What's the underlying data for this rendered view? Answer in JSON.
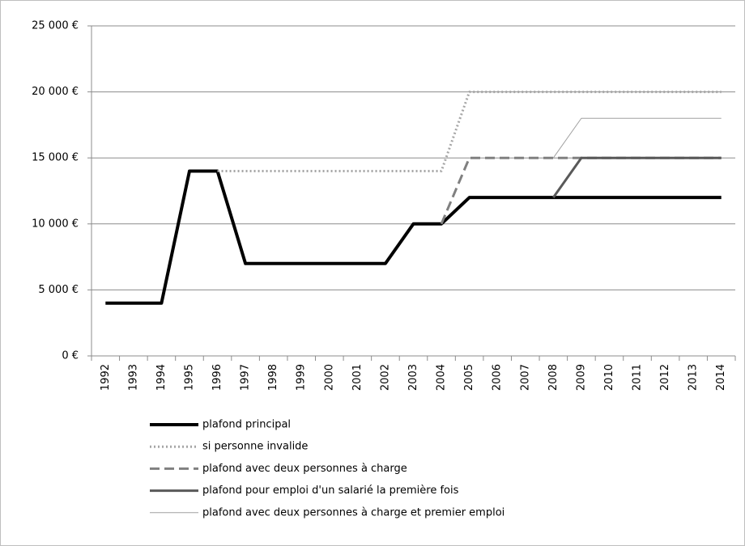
{
  "chart_data": {
    "type": "line",
    "categories": [
      "1992",
      "1993",
      "1994",
      "1995",
      "1996",
      "1997",
      "1998",
      "1999",
      "2000",
      "2001",
      "2002",
      "2003",
      "2004",
      "2005",
      "2006",
      "2007",
      "2008",
      "2009",
      "2010",
      "2011",
      "2012",
      "2013",
      "2014"
    ],
    "series": [
      {
        "name": "plafond principal",
        "color": "#000000",
        "style": "solid",
        "width": 4,
        "values": [
          4000,
          4000,
          4000,
          14000,
          14000,
          7000,
          7000,
          7000,
          7000,
          7000,
          7000,
          10000,
          10000,
          12000,
          12000,
          12000,
          12000,
          12000,
          12000,
          12000,
          12000,
          12000,
          12000
        ]
      },
      {
        "name": "si personne invalide",
        "color": "#a6a6a6",
        "style": "dotted",
        "width": 3,
        "values": [
          null,
          null,
          null,
          null,
          14000,
          14000,
          14000,
          14000,
          14000,
          14000,
          14000,
          14000,
          14000,
          20000,
          20000,
          20000,
          20000,
          20000,
          20000,
          20000,
          20000,
          20000,
          20000
        ]
      },
      {
        "name": "plafond avec deux personnes à charge",
        "color": "#808080",
        "style": "dashed",
        "width": 3,
        "values": [
          null,
          null,
          null,
          null,
          null,
          null,
          null,
          null,
          null,
          null,
          null,
          null,
          10000,
          15000,
          15000,
          15000,
          15000,
          15000,
          15000,
          15000,
          15000,
          15000,
          15000
        ]
      },
      {
        "name": "plafond pour emploi d'un salarié la première fois",
        "color": "#595959",
        "style": "solid",
        "width": 3,
        "values": [
          null,
          null,
          null,
          null,
          null,
          null,
          null,
          null,
          null,
          null,
          null,
          null,
          null,
          null,
          null,
          null,
          12000,
          15000,
          15000,
          15000,
          15000,
          15000,
          15000
        ]
      },
      {
        "name": "plafond avec deux personnes à charge et premier emploi",
        "color": "#a0a0a0",
        "style": "solid",
        "width": 1,
        "values": [
          null,
          null,
          null,
          null,
          null,
          null,
          null,
          null,
          null,
          null,
          null,
          null,
          null,
          null,
          null,
          null,
          15000,
          18000,
          18000,
          18000,
          18000,
          18000,
          18000
        ]
      }
    ],
    "ylim": [
      0,
      25000
    ],
    "yticks": [
      {
        "value": 0,
        "label": "0 €"
      },
      {
        "value": 5000,
        "label": "5 000 €"
      },
      {
        "value": 10000,
        "label": "10 000 €"
      },
      {
        "value": 15000,
        "label": "15 000 €"
      },
      {
        "value": 20000,
        "label": "20 000 €"
      },
      {
        "value": 25000,
        "label": "25 000 €"
      }
    ],
    "grid": true,
    "legend": "bottom"
  }
}
